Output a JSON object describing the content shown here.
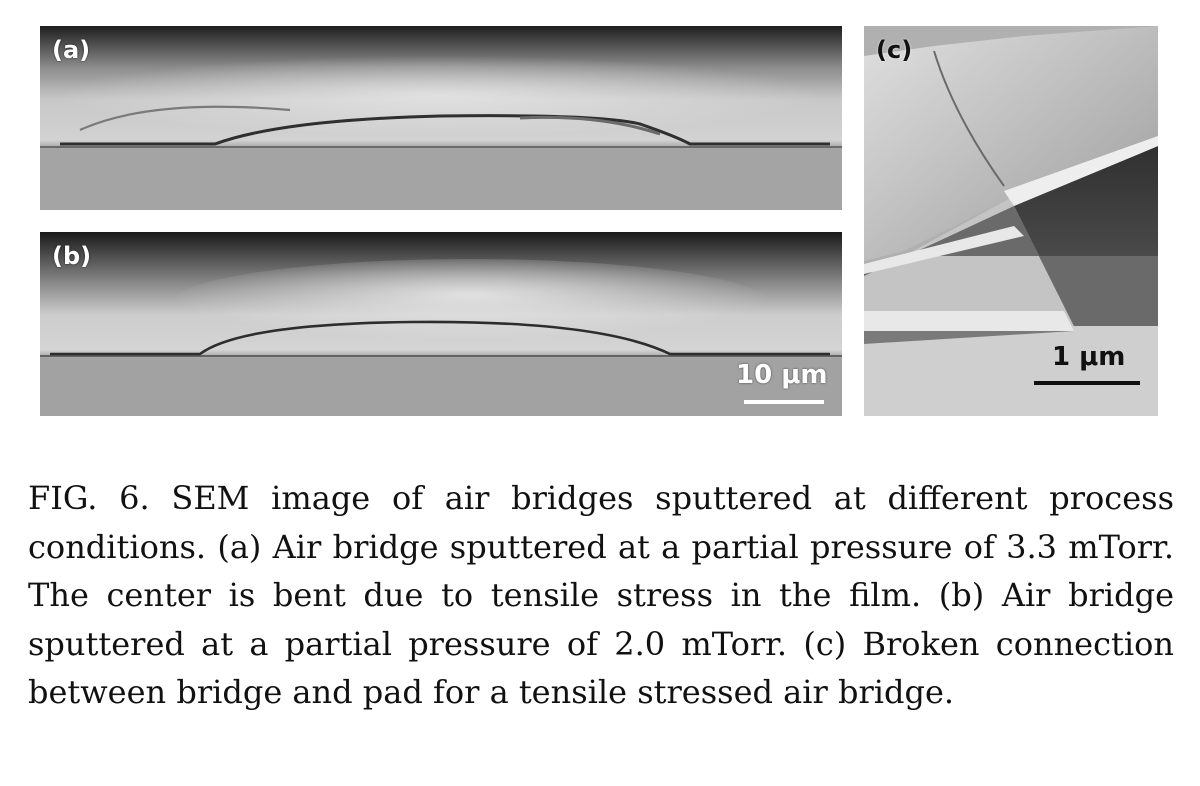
{
  "figure": {
    "panels": [
      {
        "label": "(a)"
      },
      {
        "label": "(b)",
        "scalebar": "10 μm"
      },
      {
        "label": "(c)",
        "scalebar": "1 μm"
      }
    ],
    "caption": "FIG. 6. SEM image of air bridges sputtered at different process conditions. (a) Air bridge sputtered at a partial pressure of 3.3 mTorr. The center is bent due to tensile stress in the film. (b) Air bridge sputtered at a partial pressure of 2.0 mTorr. (c) Broken connection between bridge and pad for a tensile stressed air bridge."
  }
}
